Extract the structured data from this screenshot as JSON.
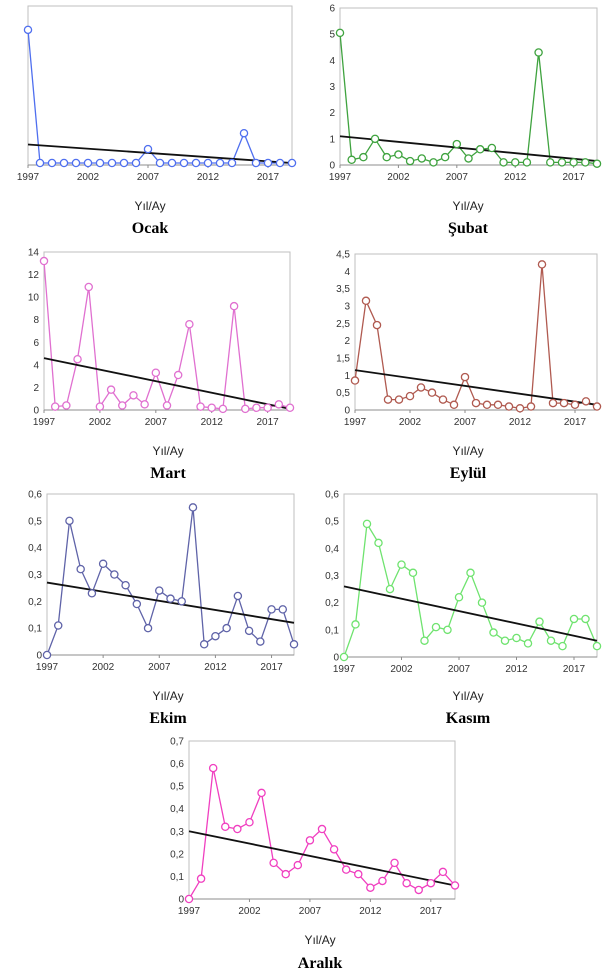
{
  "chart_data": [
    {
      "type": "line",
      "title": "Ocak",
      "xlabel": "Yıl/Ay",
      "ylabel": "",
      "color": "#4F6FEF",
      "x_ticks": [
        "1997",
        "2002",
        "2007",
        "2012",
        "2017"
      ],
      "y_ticks": [],
      "ylim": [
        0,
        12
      ],
      "x": [
        1997,
        1998,
        1999,
        2000,
        2001,
        2002,
        2003,
        2004,
        2005,
        2006,
        2007,
        2008,
        2009,
        2010,
        2011,
        2012,
        2013,
        2014,
        2015,
        2016,
        2017,
        2018,
        2019
      ],
      "values": [
        10.2,
        0.15,
        0.15,
        0.15,
        0.15,
        0.15,
        0.15,
        0.15,
        0.15,
        0.15,
        1.2,
        0.15,
        0.15,
        0.15,
        0.15,
        0.15,
        0.15,
        0.15,
        2.4,
        0.15,
        0.15,
        0.15,
        0.15
      ],
      "trend": [
        1.55,
        0.15
      ]
    },
    {
      "type": "line",
      "title": "Şubat",
      "xlabel": "Yıl/Ay",
      "ylabel": "",
      "color": "#3FA33F",
      "x_ticks": [
        "1997",
        "2002",
        "2007",
        "2012",
        "2017"
      ],
      "y_ticks": [
        "0",
        "1",
        "2",
        "3",
        "4",
        "5",
        "6"
      ],
      "ylim": [
        0,
        6
      ],
      "x": [
        1997,
        1998,
        1999,
        2000,
        2001,
        2002,
        2003,
        2004,
        2005,
        2006,
        2007,
        2008,
        2009,
        2010,
        2011,
        2012,
        2013,
        2014,
        2015,
        2016,
        2017,
        2018,
        2019
      ],
      "values": [
        5.05,
        0.2,
        0.3,
        1.0,
        0.3,
        0.4,
        0.15,
        0.25,
        0.1,
        0.3,
        0.8,
        0.25,
        0.6,
        0.65,
        0.1,
        0.1,
        0.1,
        4.3,
        0.1,
        0.1,
        0.1,
        0.1,
        0.05
      ],
      "trend": [
        1.1,
        0.15
      ]
    },
    {
      "type": "line",
      "title": "Mart",
      "xlabel": "Yıl/Ay",
      "ylabel": "",
      "color": "#E070D0",
      "x_ticks": [
        "1997",
        "2002",
        "2007",
        "2012",
        "2017"
      ],
      "y_ticks": [
        "0",
        "2",
        "4",
        "6",
        "8",
        "10",
        "12",
        "14"
      ],
      "ylim": [
        0,
        14
      ],
      "x": [
        1997,
        1998,
        1999,
        2000,
        2001,
        2002,
        2003,
        2004,
        2005,
        2006,
        2007,
        2008,
        2009,
        2010,
        2011,
        2012,
        2013,
        2014,
        2015,
        2016,
        2017,
        2018,
        2019
      ],
      "values": [
        13.2,
        0.3,
        0.4,
        4.5,
        10.9,
        0.3,
        1.8,
        0.4,
        1.3,
        0.5,
        3.3,
        0.4,
        3.1,
        7.6,
        0.3,
        0.2,
        0.1,
        9.2,
        0.1,
        0.2,
        0.2,
        0.5,
        0.2
      ],
      "trend": [
        4.6,
        0.1
      ]
    },
    {
      "type": "line",
      "title": "Eylül",
      "xlabel": "Yıl/Ay",
      "ylabel": "",
      "color": "#B05A50",
      "x_ticks": [
        "1997",
        "2002",
        "2007",
        "2012",
        "2017"
      ],
      "y_ticks": [
        "0",
        "0,5",
        "1",
        "1,5",
        "2",
        "2,5",
        "3",
        "3,5",
        "4",
        "4,5"
      ],
      "ylim": [
        0,
        4.5
      ],
      "x": [
        1997,
        1998,
        1999,
        2000,
        2001,
        2002,
        2003,
        2004,
        2005,
        2006,
        2007,
        2008,
        2009,
        2010,
        2011,
        2012,
        2013,
        2014,
        2015,
        2016,
        2017,
        2018,
        2019
      ],
      "values": [
        0.85,
        3.15,
        2.45,
        0.3,
        0.3,
        0.4,
        0.65,
        0.5,
        0.3,
        0.15,
        0.95,
        0.2,
        0.15,
        0.15,
        0.1,
        0.05,
        0.1,
        4.2,
        0.2,
        0.2,
        0.15,
        0.25,
        0.1
      ],
      "trend": [
        1.15,
        0.15
      ]
    },
    {
      "type": "line",
      "title": "Ekim",
      "xlabel": "Yıl/Ay",
      "ylabel": "",
      "color": "#5F63A8",
      "x_ticks": [
        "1997",
        "2002",
        "2007",
        "2012",
        "2017"
      ],
      "y_ticks": [
        "0",
        "0,1",
        "0,2",
        "0,3",
        "0,4",
        "0,5",
        "0,6"
      ],
      "ylim": [
        0,
        0.6
      ],
      "x": [
        1997,
        1998,
        1999,
        2000,
        2001,
        2002,
        2003,
        2004,
        2005,
        2006,
        2007,
        2008,
        2009,
        2010,
        2011,
        2012,
        2013,
        2014,
        2015,
        2016,
        2017,
        2018,
        2019
      ],
      "values": [
        0.0,
        0.11,
        0.5,
        0.32,
        0.23,
        0.34,
        0.3,
        0.26,
        0.19,
        0.1,
        0.24,
        0.21,
        0.2,
        0.55,
        0.04,
        0.07,
        0.1,
        0.22,
        0.09,
        0.05,
        0.17,
        0.17,
        0.04
      ],
      "trend": [
        0.27,
        0.12
      ]
    },
    {
      "type": "line",
      "title": "Kasım",
      "xlabel": "Yıl/Ay",
      "ylabel": "",
      "color": "#6FE36F",
      "x_ticks": [
        "1997",
        "2002",
        "2007",
        "2012",
        "2017"
      ],
      "y_ticks": [
        "0",
        "0,1",
        "0,2",
        "0,3",
        "0,4",
        "0,5",
        "0,6"
      ],
      "ylim": [
        0,
        0.6
      ],
      "x": [
        1997,
        1998,
        1999,
        2000,
        2001,
        2002,
        2003,
        2004,
        2005,
        2006,
        2007,
        2008,
        2009,
        2010,
        2011,
        2012,
        2013,
        2014,
        2015,
        2016,
        2017,
        2018,
        2019
      ],
      "values": [
        0.0,
        0.12,
        0.49,
        0.42,
        0.25,
        0.34,
        0.31,
        0.06,
        0.11,
        0.1,
        0.22,
        0.31,
        0.2,
        0.09,
        0.06,
        0.07,
        0.05,
        0.13,
        0.06,
        0.04,
        0.14,
        0.14,
        0.04
      ],
      "trend": [
        0.26,
        0.06
      ]
    },
    {
      "type": "line",
      "title": "Aralık",
      "xlabel": "Yıl/Ay",
      "ylabel": "",
      "color": "#F03FC0",
      "x_ticks": [
        "1997",
        "2002",
        "2007",
        "2012",
        "2017"
      ],
      "y_ticks": [
        "0",
        "0,1",
        "0,2",
        "0,3",
        "0,4",
        "0,5",
        "0,6",
        "0,7"
      ],
      "ylim": [
        0,
        0.7
      ],
      "x": [
        1997,
        1998,
        1999,
        2000,
        2001,
        2002,
        2003,
        2004,
        2005,
        2006,
        2007,
        2008,
        2009,
        2010,
        2011,
        2012,
        2013,
        2014,
        2015,
        2016,
        2017,
        2018,
        2019
      ],
      "values": [
        0.0,
        0.09,
        0.58,
        0.32,
        0.31,
        0.34,
        0.47,
        0.16,
        0.11,
        0.15,
        0.26,
        0.31,
        0.22,
        0.13,
        0.11,
        0.05,
        0.08,
        0.16,
        0.07,
        0.04,
        0.07,
        0.12,
        0.06
      ],
      "trend": [
        0.3,
        0.06
      ]
    }
  ]
}
